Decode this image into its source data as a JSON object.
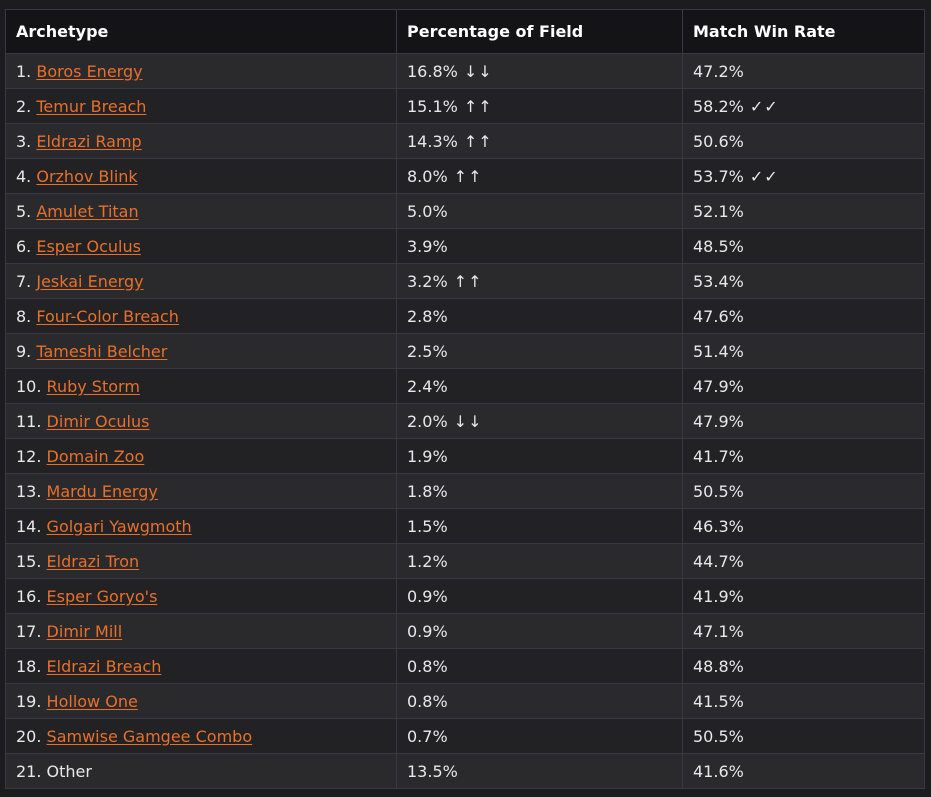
{
  "table": {
    "headers": [
      "Archetype",
      "Percentage of Field",
      "Match Win Rate"
    ],
    "rows": [
      {
        "rank": "1.",
        "name": "Boros Energy",
        "link": true,
        "pct": "16.8%",
        "pct_marker": "↓↓",
        "win": "47.2%",
        "win_marker": ""
      },
      {
        "rank": "2.",
        "name": "Temur Breach",
        "link": true,
        "pct": "15.1%",
        "pct_marker": "↑↑",
        "win": "58.2%",
        "win_marker": "✓✓"
      },
      {
        "rank": "3.",
        "name": "Eldrazi Ramp",
        "link": true,
        "pct": "14.3%",
        "pct_marker": "↑↑",
        "win": "50.6%",
        "win_marker": ""
      },
      {
        "rank": "4.",
        "name": "Orzhov Blink",
        "link": true,
        "pct": "8.0%",
        "pct_marker": "↑↑",
        "win": "53.7%",
        "win_marker": "✓✓"
      },
      {
        "rank": "5.",
        "name": "Amulet Titan",
        "link": true,
        "pct": "5.0%",
        "pct_marker": "",
        "win": "52.1%",
        "win_marker": ""
      },
      {
        "rank": "6.",
        "name": "Esper Oculus",
        "link": true,
        "pct": "3.9%",
        "pct_marker": "",
        "win": "48.5%",
        "win_marker": ""
      },
      {
        "rank": "7.",
        "name": "Jeskai Energy",
        "link": true,
        "pct": "3.2%",
        "pct_marker": "↑↑",
        "win": "53.4%",
        "win_marker": ""
      },
      {
        "rank": "8.",
        "name": "Four-Color Breach",
        "link": true,
        "pct": "2.8%",
        "pct_marker": "",
        "win": "47.6%",
        "win_marker": ""
      },
      {
        "rank": "9.",
        "name": "Tameshi Belcher",
        "link": true,
        "pct": "2.5%",
        "pct_marker": "",
        "win": "51.4%",
        "win_marker": ""
      },
      {
        "rank": "10.",
        "name": "Ruby Storm",
        "link": true,
        "pct": "2.4%",
        "pct_marker": "",
        "win": "47.9%",
        "win_marker": ""
      },
      {
        "rank": "11.",
        "name": "Dimir Oculus",
        "link": true,
        "pct": "2.0%",
        "pct_marker": "↓↓",
        "win": "47.9%",
        "win_marker": ""
      },
      {
        "rank": "12.",
        "name": "Domain Zoo",
        "link": true,
        "pct": "1.9%",
        "pct_marker": "",
        "win": "41.7%",
        "win_marker": ""
      },
      {
        "rank": "13.",
        "name": "Mardu Energy",
        "link": true,
        "pct": "1.8%",
        "pct_marker": "",
        "win": "50.5%",
        "win_marker": ""
      },
      {
        "rank": "14.",
        "name": "Golgari Yawgmoth",
        "link": true,
        "pct": "1.5%",
        "pct_marker": "",
        "win": "46.3%",
        "win_marker": ""
      },
      {
        "rank": "15.",
        "name": "Eldrazi Tron",
        "link": true,
        "pct": "1.2%",
        "pct_marker": "",
        "win": "44.7%",
        "win_marker": ""
      },
      {
        "rank": "16.",
        "name": "Esper Goryo's",
        "link": true,
        "pct": "0.9%",
        "pct_marker": "",
        "win": "41.9%",
        "win_marker": ""
      },
      {
        "rank": "17.",
        "name": "Dimir Mill",
        "link": true,
        "pct": "0.9%",
        "pct_marker": "",
        "win": "47.1%",
        "win_marker": ""
      },
      {
        "rank": "18.",
        "name": "Eldrazi Breach",
        "link": true,
        "pct": "0.8%",
        "pct_marker": "",
        "win": "48.8%",
        "win_marker": ""
      },
      {
        "rank": "19.",
        "name": "Hollow One",
        "link": true,
        "pct": "0.8%",
        "pct_marker": "",
        "win": "41.5%",
        "win_marker": ""
      },
      {
        "rank": "20.",
        "name": "Samwise Gamgee Combo",
        "link": true,
        "pct": "0.7%",
        "pct_marker": "",
        "win": "50.5%",
        "win_marker": ""
      },
      {
        "rank": "21.",
        "name": "Other",
        "link": false,
        "pct": "13.5%",
        "pct_marker": "",
        "win": "41.6%",
        "win_marker": ""
      }
    ]
  },
  "colors": {
    "link": "#e8702a",
    "header_bg": "#141416",
    "row_odd_bg": "#2a2a2d",
    "row_even_bg": "#222225",
    "border": "#3a3a3e"
  }
}
